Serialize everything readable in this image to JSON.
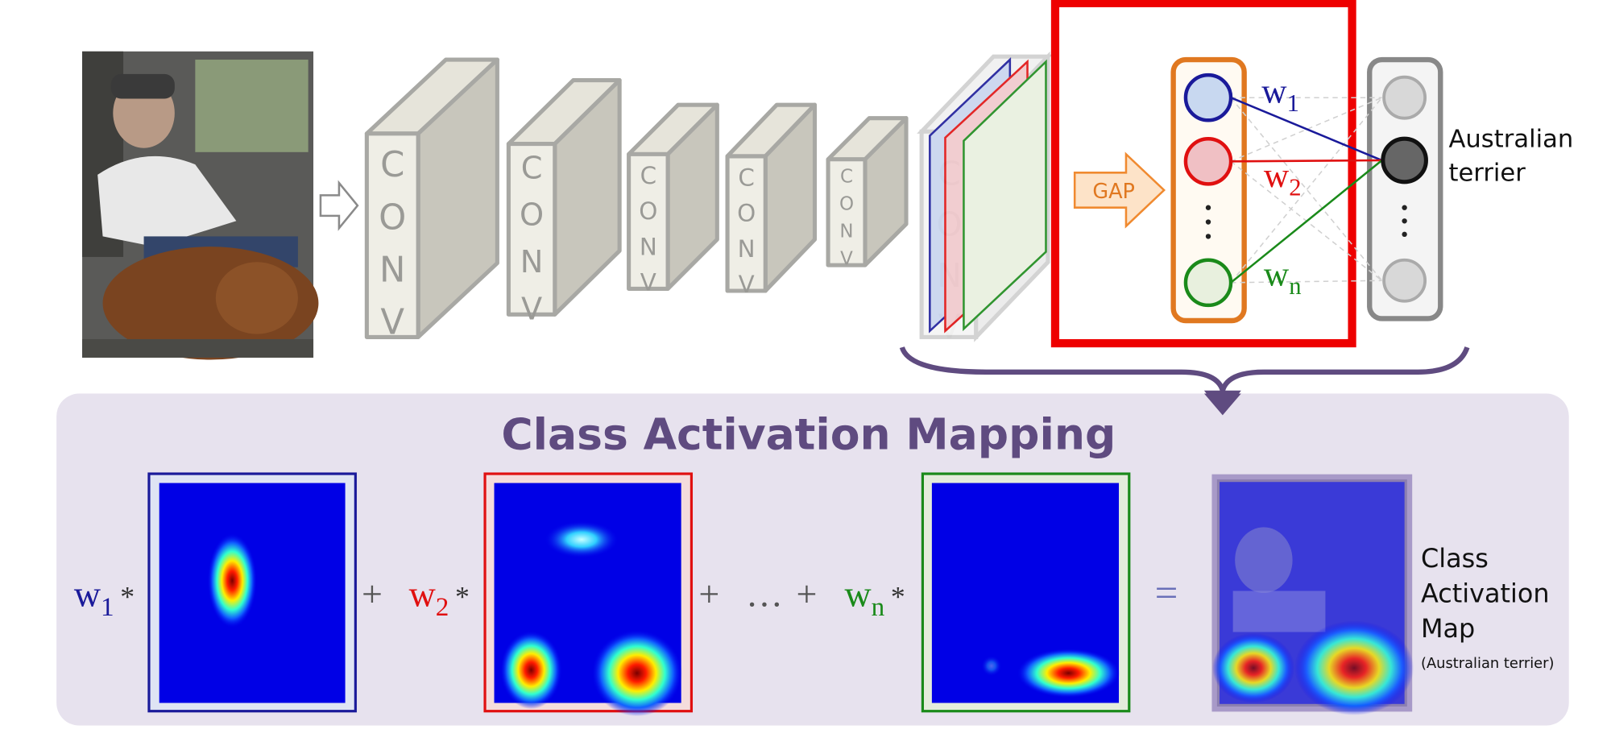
{
  "network": {
    "conv_blocks": [
      "CONV",
      "CONV",
      "CONV",
      "CONV",
      "CONV",
      "CONV"
    ],
    "gap_label": "GAP",
    "weights": [
      {
        "symbol": "w",
        "index": "1"
      },
      {
        "symbol": "w",
        "index": "2"
      },
      {
        "symbol": "w",
        "index": "n"
      }
    ],
    "output_label": [
      "Australian",
      "terrier"
    ]
  },
  "mapping": {
    "title": "Class Activation Mapping",
    "terms": [
      {
        "symbol": "w",
        "index": "1",
        "operator": "*"
      },
      {
        "symbol": "w",
        "index": "2",
        "operator": "*"
      },
      {
        "symbol": "w",
        "index": "n",
        "operator": "*"
      }
    ],
    "plus": "+",
    "ellipsis": "…",
    "equals": "=",
    "result_label": [
      "Class",
      "Activation",
      "Map"
    ],
    "result_note": "(Australian terrier)"
  }
}
